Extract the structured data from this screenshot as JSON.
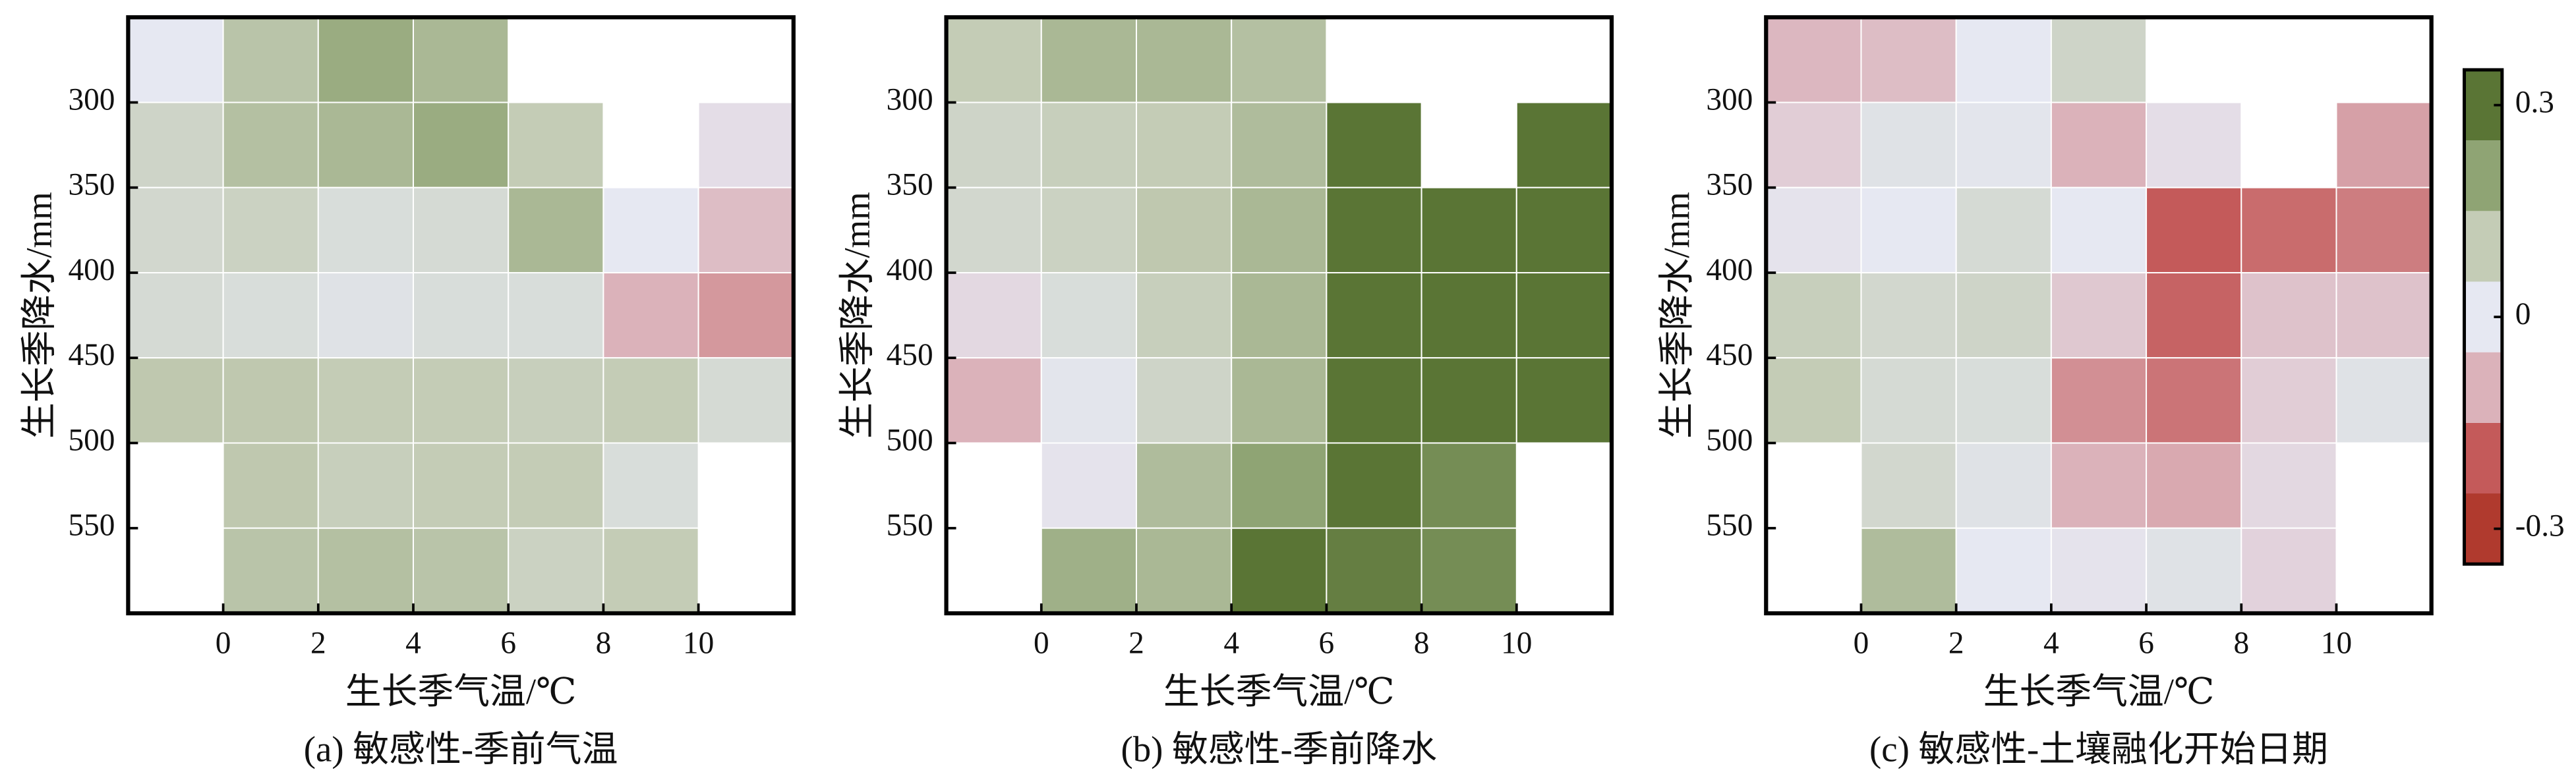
{
  "chart_data": [
    {
      "type": "heatmap",
      "caption": "(a) 敏感性-季前气温",
      "xlabel": "生长季气温/℃",
      "ylabel": "生长季降水/mm",
      "xlim": [
        -2,
        12
      ],
      "ylim": [
        250,
        600
      ],
      "yinverted": true,
      "xticks": [
        0,
        2,
        4,
        6,
        8,
        10
      ],
      "yticks": [
        300,
        350,
        400,
        450,
        500,
        550
      ],
      "values": [
        [
          0.0,
          0.12,
          0.18,
          0.15,
          null,
          null,
          null
        ],
        [
          0.07,
          0.13,
          0.15,
          0.18,
          0.1,
          null,
          -0.02
        ],
        [
          0.06,
          0.08,
          0.04,
          0.05,
          0.15,
          0.0,
          -0.08
        ],
        [
          0.05,
          0.04,
          0.02,
          0.04,
          0.04,
          -0.1,
          -0.13
        ],
        [
          0.11,
          0.11,
          0.1,
          0.1,
          0.09,
          0.1,
          0.05
        ],
        [
          null,
          0.11,
          0.09,
          0.1,
          0.1,
          0.04,
          null
        ],
        [
          null,
          0.12,
          0.13,
          0.12,
          0.08,
          0.1,
          null
        ]
      ]
    },
    {
      "type": "heatmap",
      "caption": "(b) 敏感性-季前降水",
      "xlabel": "生长季气温/℃",
      "ylabel": "生长季降水/mm",
      "xlim": [
        -2,
        12
      ],
      "ylim": [
        250,
        600
      ],
      "yinverted": true,
      "xticks": [
        0,
        2,
        4,
        6,
        8,
        10
      ],
      "yticks": [
        300,
        350,
        400,
        450,
        500,
        550
      ],
      "values": [
        [
          0.1,
          0.15,
          0.15,
          0.13,
          null,
          null,
          null
        ],
        [
          0.07,
          0.09,
          0.1,
          0.14,
          0.3,
          null,
          0.3
        ],
        [
          0.06,
          0.08,
          0.11,
          0.15,
          0.3,
          0.3,
          0.3
        ],
        [
          -0.03,
          0.04,
          0.09,
          0.15,
          0.3,
          0.3,
          0.3
        ],
        [
          -0.1,
          0.01,
          0.07,
          0.15,
          0.3,
          0.3,
          0.3
        ],
        [
          null,
          -0.01,
          0.14,
          0.2,
          0.3,
          0.25,
          null
        ],
        [
          null,
          0.17,
          0.15,
          0.32,
          0.28,
          0.25,
          null
        ]
      ]
    },
    {
      "type": "heatmap",
      "caption": "(c) 敏感性-土壤融化开始日期",
      "xlabel": "生长季气温/℃",
      "ylabel": "生长季降水/mm",
      "xlim": [
        -2,
        12
      ],
      "ylim": [
        250,
        600
      ],
      "yinverted": true,
      "xticks": [
        0,
        2,
        4,
        6,
        8,
        10
      ],
      "yticks": [
        300,
        350,
        400,
        450,
        500,
        550
      ],
      "values": [
        [
          -0.09,
          -0.08,
          0.0,
          0.07,
          null,
          null,
          null
        ],
        [
          -0.05,
          0.02,
          0.01,
          -0.1,
          -0.02,
          null,
          -0.12
        ],
        [
          -0.01,
          0.0,
          0.05,
          0.0,
          -0.2,
          -0.18,
          -0.16
        ],
        [
          0.09,
          0.06,
          0.07,
          -0.06,
          -0.19,
          -0.07,
          -0.07
        ],
        [
          0.1,
          0.05,
          0.04,
          -0.14,
          -0.17,
          -0.05,
          0.02
        ],
        [
          null,
          0.06,
          0.02,
          -0.1,
          -0.11,
          -0.03,
          null
        ],
        [
          null,
          0.14,
          0.0,
          -0.01,
          0.02,
          -0.04,
          null
        ]
      ]
    }
  ],
  "colorbar": {
    "clim": [
      -0.35,
      0.35
    ],
    "ticks": [
      0.3,
      0,
      -0.3
    ],
    "colors": [
      "#b03a2e",
      "#c45a5a",
      "#dbb2ba",
      "#e6e8f2",
      "#c4ccb6",
      "#8fa474",
      "#5a7535"
    ]
  }
}
